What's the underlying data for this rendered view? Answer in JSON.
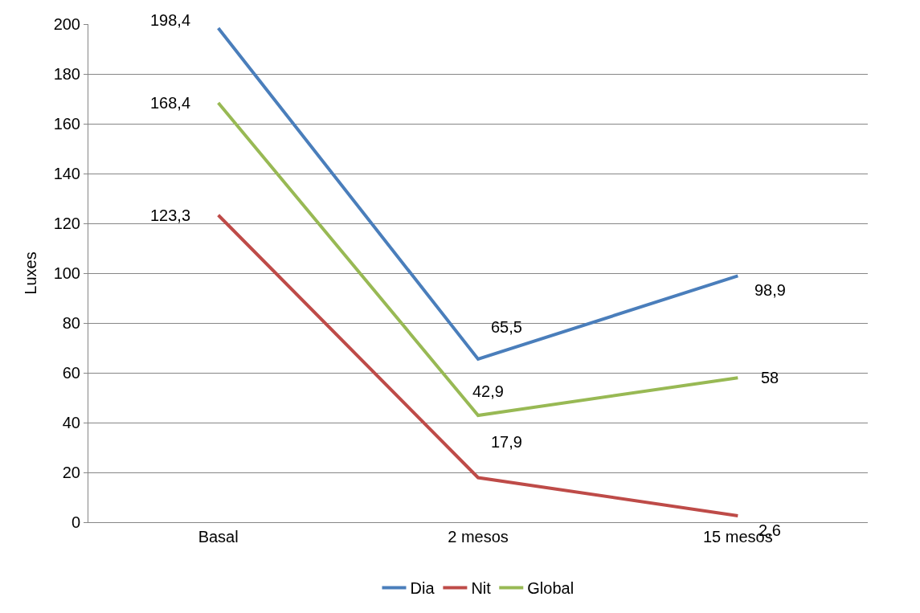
{
  "chart_data": {
    "type": "line",
    "ylabel": "Luxes",
    "categories": [
      "Basal",
      "2 mesos",
      "15 mesos"
    ],
    "series": [
      {
        "name": "Dia",
        "color": "#4a7ebb",
        "values": [
          198.4,
          65.5,
          98.9
        ],
        "value_labels": [
          "198,4",
          "65,5",
          "98,9"
        ]
      },
      {
        "name": "Nit",
        "color": "#be4b48",
        "values": [
          123.3,
          17.9,
          2.6
        ],
        "value_labels": [
          "123,3",
          "17,9",
          "2,6"
        ]
      },
      {
        "name": "Global",
        "color": "#98b954",
        "values": [
          168.4,
          42.9,
          58
        ],
        "value_labels": [
          "168,4",
          "42,9",
          "58"
        ]
      }
    ],
    "ylim": [
      0,
      200
    ],
    "yticks": [
      0,
      20,
      40,
      60,
      80,
      100,
      120,
      140,
      160,
      180,
      200
    ],
    "grid": "y",
    "legend": "bottom",
    "marker": "none",
    "line_style": "solid"
  }
}
